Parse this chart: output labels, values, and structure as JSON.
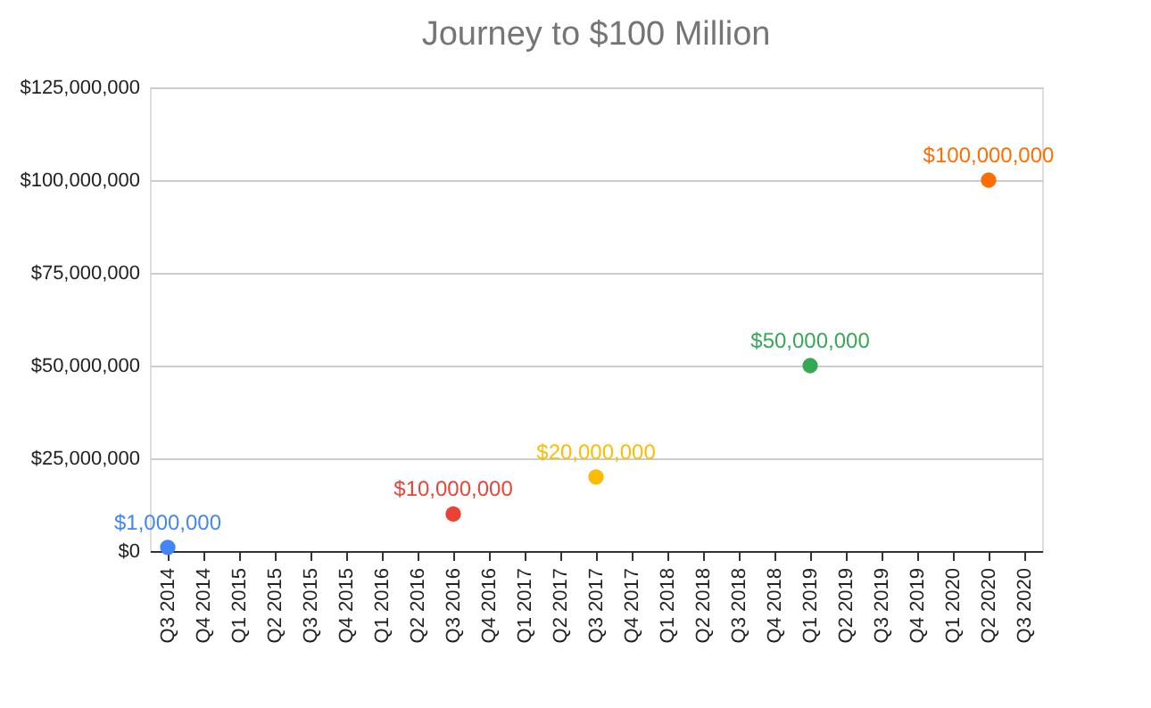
{
  "chart_data": {
    "type": "scatter",
    "title": "Journey to $100 Million",
    "categories": [
      "Q3 2014",
      "Q4 2014",
      "Q1 2015",
      "Q2 2015",
      "Q3 2015",
      "Q4 2015",
      "Q1 2016",
      "Q2 2016",
      "Q3 2016",
      "Q4 2016",
      "Q1 2017",
      "Q2 2017",
      "Q3 2017",
      "Q4 2017",
      "Q1 2018",
      "Q2 2018",
      "Q3 2018",
      "Q4 2018",
      "Q1 2019",
      "Q2 2019",
      "Q3 2019",
      "Q4 2019",
      "Q1 2020",
      "Q2 2020",
      "Q3 2020"
    ],
    "values": [
      1000000,
      null,
      null,
      null,
      null,
      null,
      null,
      null,
      10000000,
      null,
      null,
      null,
      20000000,
      null,
      null,
      null,
      null,
      null,
      50000000,
      null,
      null,
      null,
      null,
      100000000,
      null
    ],
    "colors": [
      "#4285f4",
      null,
      null,
      null,
      null,
      null,
      null,
      null,
      "#ea4335",
      null,
      null,
      null,
      "#fbbc04",
      null,
      null,
      null,
      null,
      null,
      "#34a853",
      null,
      null,
      null,
      null,
      "#ff6d01",
      null
    ],
    "value_labels": [
      "$1,000,000",
      null,
      null,
      null,
      null,
      null,
      null,
      null,
      "$10,000,000",
      null,
      null,
      null,
      "$20,000,000",
      null,
      null,
      null,
      null,
      null,
      "$50,000,000",
      null,
      null,
      null,
      null,
      "$100,000,000",
      null
    ],
    "ylim": [
      0,
      125000000
    ],
    "yticks": [
      {
        "value": 0,
        "label": "$0"
      },
      {
        "value": 25000000,
        "label": "$25,000,000"
      },
      {
        "value": 50000000,
        "label": "$50,000,000"
      },
      {
        "value": 75000000,
        "label": "$75,000,000"
      },
      {
        "value": 100000000,
        "label": "$100,000,000"
      },
      {
        "value": 125000000,
        "label": "$125,000,000"
      }
    ],
    "grid": "y",
    "marker": "circle"
  }
}
